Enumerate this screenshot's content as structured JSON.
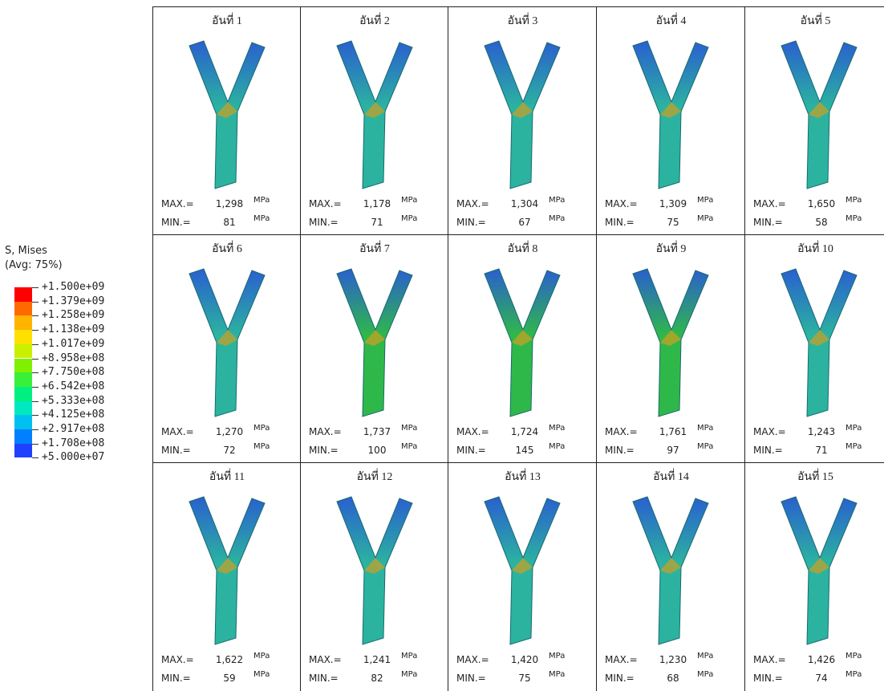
{
  "legend": {
    "title": "S, Mises",
    "subtitle": "(Avg: 75%)",
    "levels": [
      "+1.500e+09",
      "+1.379e+09",
      "+1.258e+09",
      "+1.138e+09",
      "+1.017e+09",
      "+8.958e+08",
      "+7.750e+08",
      "+6.542e+08",
      "+5.333e+08",
      "+4.125e+08",
      "+2.917e+08",
      "+1.708e+08",
      "+5.000e+07"
    ],
    "colors": [
      "#ff0000",
      "#ff6a00",
      "#ffb400",
      "#ffe000",
      "#c8f000",
      "#80f000",
      "#38f038",
      "#00f080",
      "#00e8c0",
      "#00c0f0",
      "#0080ff",
      "#2040ff"
    ]
  },
  "labels": {
    "max": "MAX.=",
    "min": "MIN.=",
    "unit": "MPa"
  },
  "cells": [
    {
      "label": "อันที่ 1",
      "max": "1,298",
      "min": "81"
    },
    {
      "label": "อันที่ 2",
      "max": "1,178",
      "min": "71"
    },
    {
      "label": "อันที่ 3",
      "max": "1,304",
      "min": "67"
    },
    {
      "label": "อันที่ 4",
      "max": "1,309",
      "min": "75"
    },
    {
      "label": "อันที่ 5",
      "max": "1,650",
      "min": "58"
    },
    {
      "label": "อันที่ 6",
      "max": "1,270",
      "min": "72"
    },
    {
      "label": "อันที่ 7",
      "max": "1,737",
      "min": "100"
    },
    {
      "label": "อันที่ 8",
      "max": "1,724",
      "min": "145"
    },
    {
      "label": "อันที่ 9",
      "max": "1,761",
      "min": "97"
    },
    {
      "label": "อันที่ 10",
      "max": "1,243",
      "min": "71"
    },
    {
      "label": "อันที่ 11",
      "max": "1,622",
      "min": "59"
    },
    {
      "label": "อันที่ 12",
      "max": "1,241",
      "min": "82"
    },
    {
      "label": "อันที่ 13",
      "max": "1,420",
      "min": "75"
    },
    {
      "label": "อันที่ 14",
      "max": "1,230",
      "min": "68"
    },
    {
      "label": "อันที่ 15",
      "max": "1,426",
      "min": "74"
    }
  ]
}
